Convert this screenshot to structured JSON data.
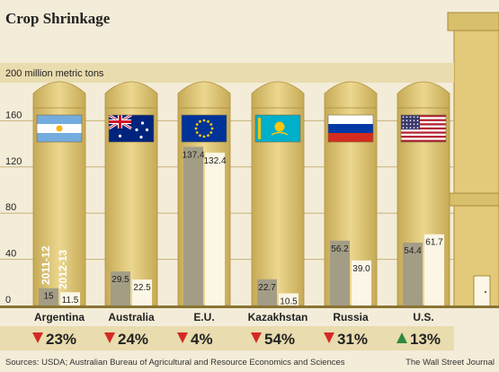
{
  "chart_data": {
    "type": "bar",
    "title": "Crop Shrinkage",
    "unit_label": "200 million metric tons",
    "yticks": [
      0,
      40,
      80,
      120,
      160
    ],
    "ylim": [
      0,
      200
    ],
    "categories": [
      "Argentina",
      "Australia",
      "E.U.",
      "Kazakhstan",
      "Russia",
      "U.S."
    ],
    "series": [
      {
        "name": "2011-12",
        "values": [
          15,
          29.5,
          137.4,
          22.7,
          56.2,
          54.4
        ]
      },
      {
        "name": "2012-13",
        "values": [
          11.5,
          22.5,
          132.4,
          10.5,
          39.0,
          61.7
        ]
      }
    ],
    "value_labels": {
      "2011-12": [
        "15",
        "29.5",
        "137.4",
        "22.7",
        "56.2",
        "54.4"
      ],
      "2012-13": [
        "11.5",
        "22.5",
        "132.4",
        "10.5",
        "39.0",
        "61.7"
      ]
    },
    "changes": [
      "23%",
      "24%",
      "4%",
      "54%",
      "31%",
      "13%"
    ],
    "change_directions": [
      "down",
      "down",
      "down",
      "down",
      "down",
      "up"
    ],
    "flags": [
      "argentina-flag",
      "australia-flag",
      "eu-flag",
      "kazakhstan-flag",
      "russia-flag",
      "us-flag"
    ]
  },
  "source": "Sources: USDA; Australian Bureau of Agricultural and Resource Economics and Sciences",
  "credit": "The Wall Street Journal",
  "colors": {
    "background": "#f3ecd8",
    "silo": "#e2ca7a",
    "silo_dark": "#c9ad5a",
    "bar_2011": "#a39d86",
    "bar_2012": "#fbf6e6",
    "down": "#d42a26",
    "up": "#2e8a3c",
    "band": "#e9dcae"
  }
}
